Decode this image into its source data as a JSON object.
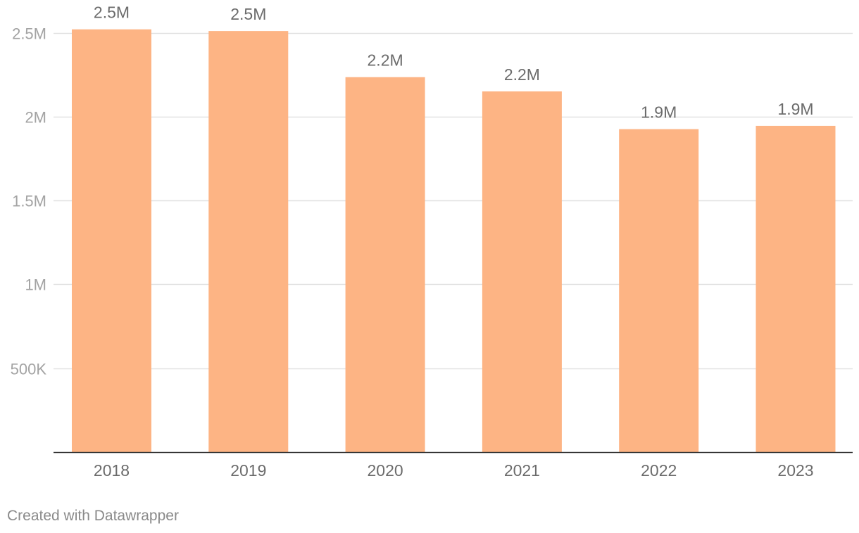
{
  "chart_data": {
    "type": "bar",
    "categories": [
      "2018",
      "2019",
      "2020",
      "2021",
      "2022",
      "2023"
    ],
    "values": [
      2520000,
      2510000,
      2235000,
      2150000,
      1925000,
      1945000
    ],
    "value_labels": [
      "2.5M",
      "2.5M",
      "2.2M",
      "2.2M",
      "1.9M",
      "1.9M"
    ],
    "ylim": [
      0,
      2600000
    ],
    "yticks": [
      500000,
      1000000,
      1500000,
      2000000,
      2500000
    ],
    "ytick_labels": [
      "500K",
      "1M",
      "1.5M",
      "2M",
      "2.5M"
    ],
    "grid": true,
    "bar_color": "#fdb484",
    "title": "",
    "xlabel": "",
    "ylabel": ""
  },
  "footer": {
    "credit": "Created with Datawrapper"
  }
}
